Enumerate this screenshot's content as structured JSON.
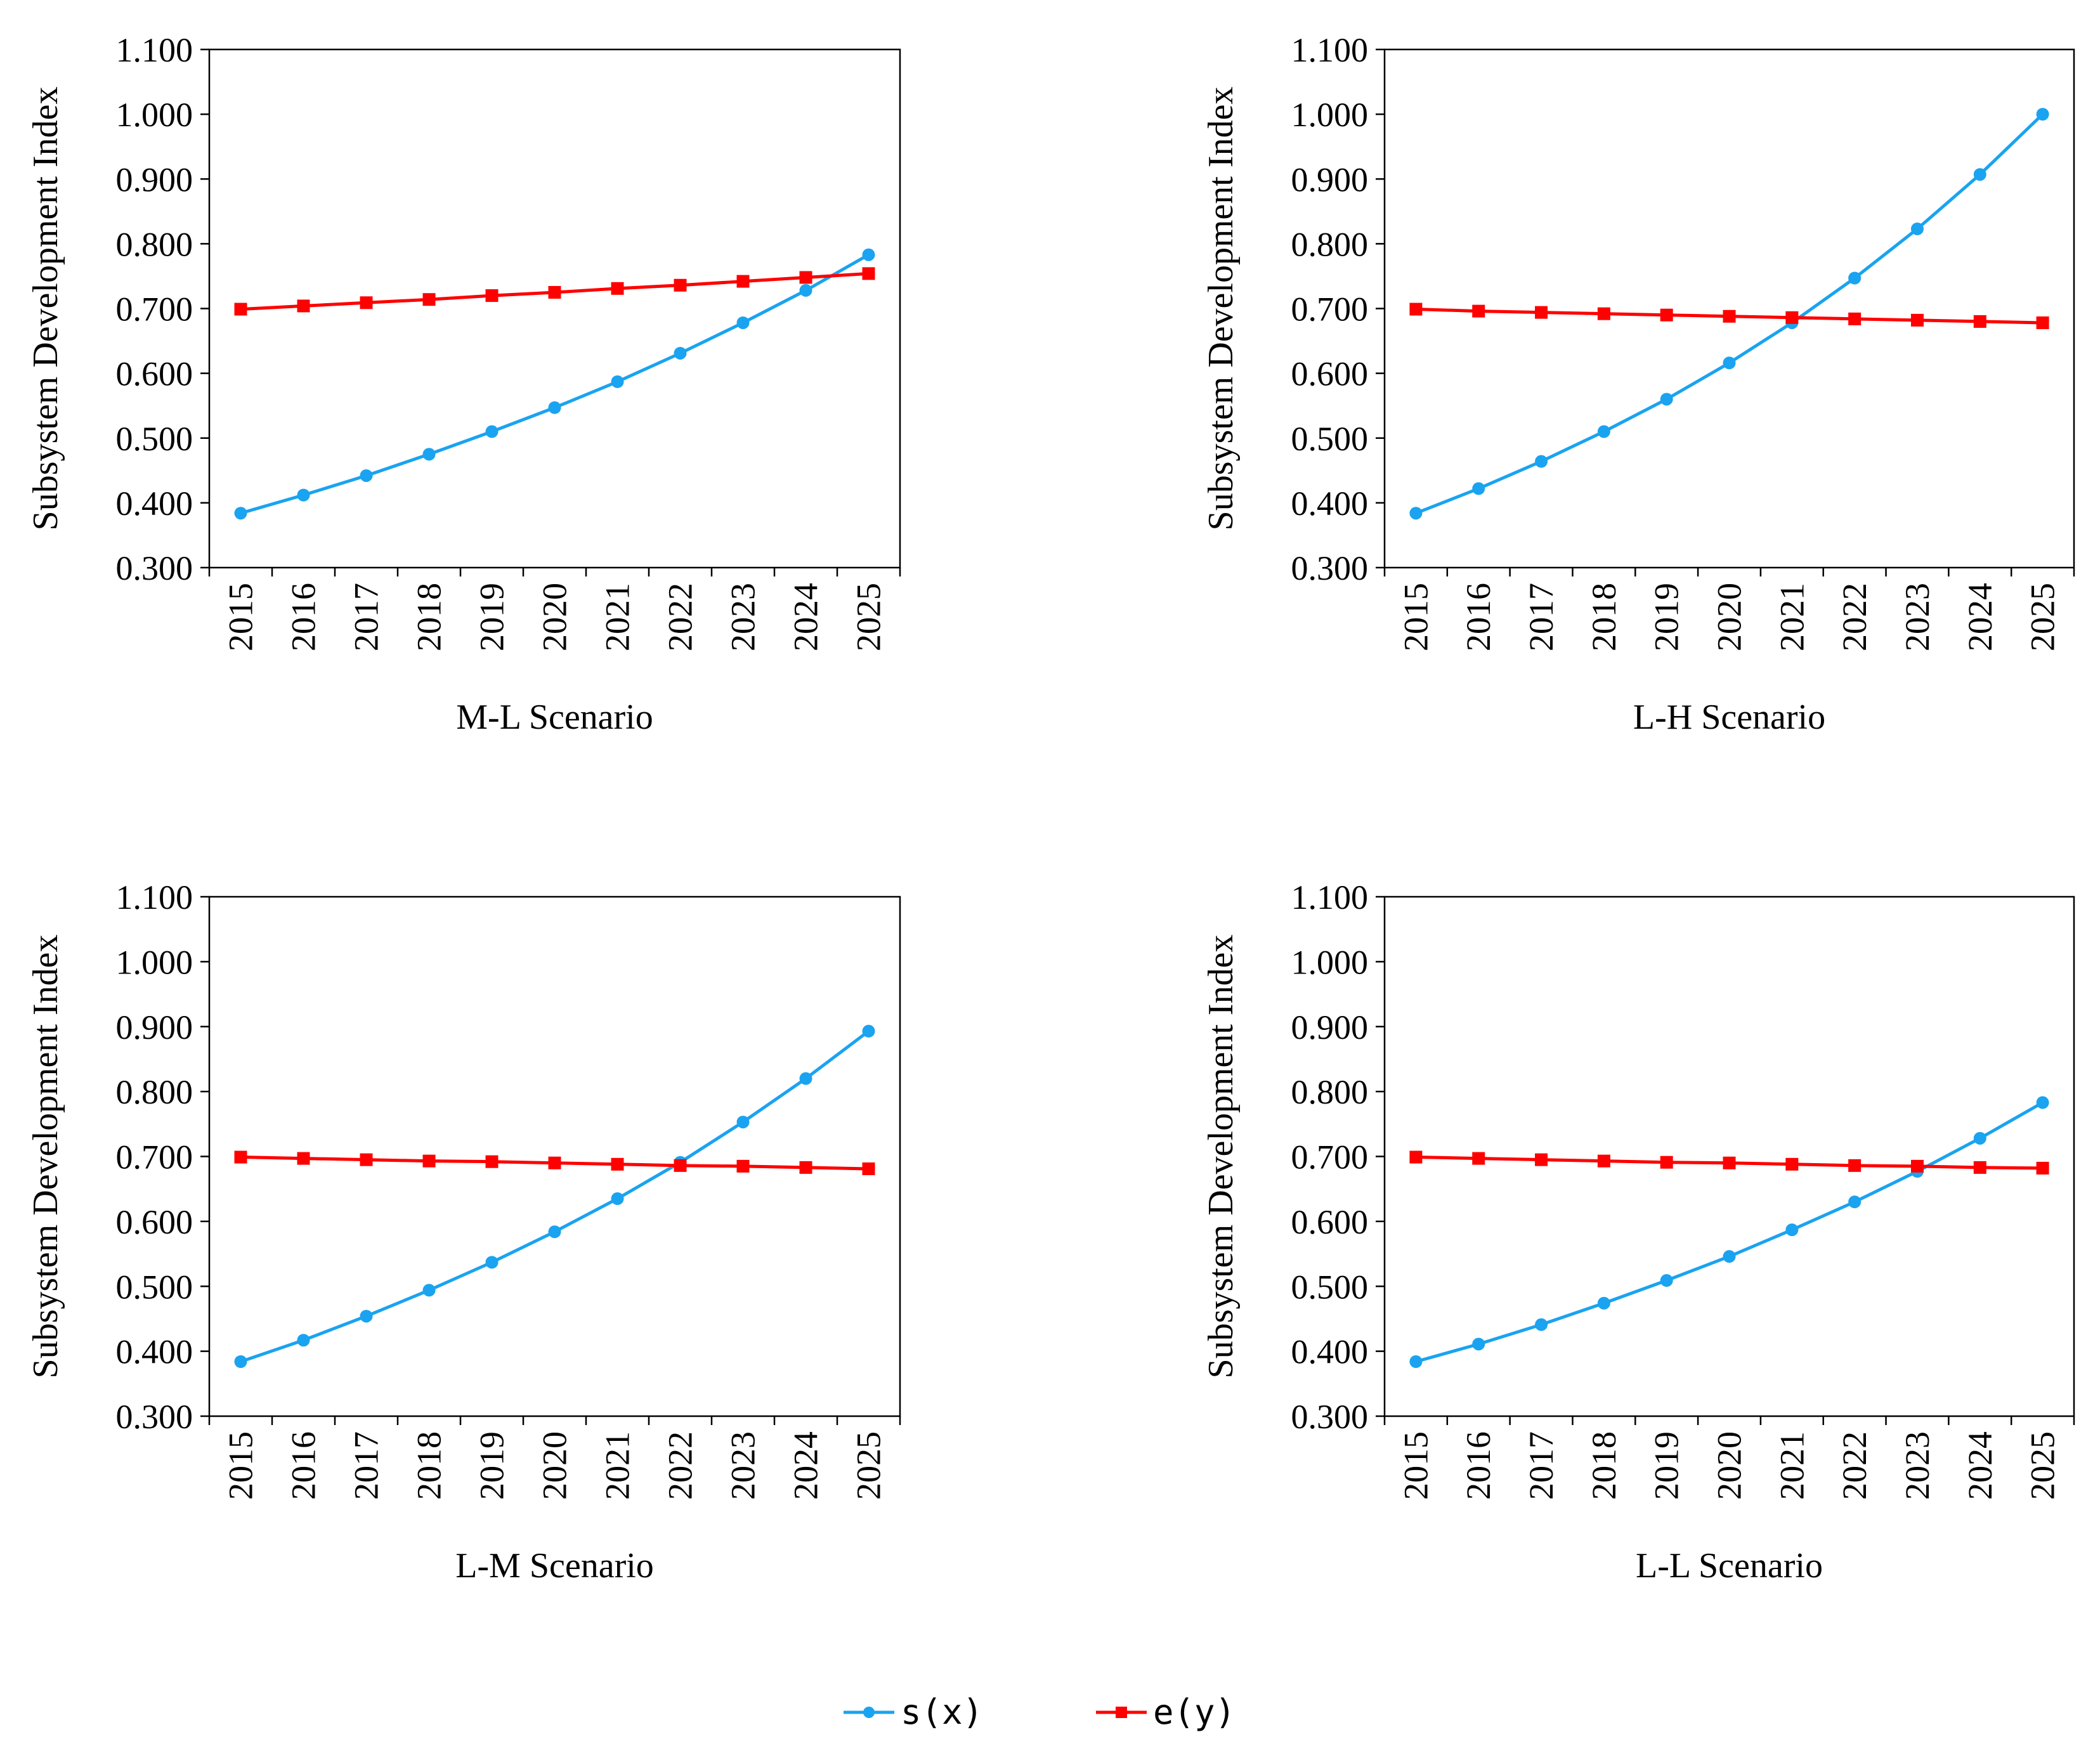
{
  "chart_data": [
    {
      "type": "line",
      "title": "M-L Scenario",
      "xlabel": "M-L Scenario",
      "ylabel": "Subsystem Development Index",
      "ylim": [
        0.3,
        1.1
      ],
      "yticks": [
        "0.300",
        "0.400",
        "0.500",
        "0.600",
        "0.700",
        "0.800",
        "0.900",
        "1.000",
        "1.100"
      ],
      "categories": [
        "2015",
        "2016",
        "2017",
        "2018",
        "2019",
        "2020",
        "2021",
        "2022",
        "2023",
        "2024",
        "2025"
      ],
      "series": [
        {
          "name": "s(x)",
          "values": [
            0.384,
            0.412,
            0.442,
            0.475,
            0.51,
            0.547,
            0.587,
            0.631,
            0.678,
            0.728,
            0.783
          ]
        },
        {
          "name": "e(y)",
          "values": [
            0.699,
            0.704,
            0.709,
            0.714,
            0.72,
            0.725,
            0.731,
            0.736,
            0.742,
            0.748,
            0.754
          ]
        }
      ]
    },
    {
      "type": "line",
      "title": "L-H Scenario",
      "xlabel": "L-H Scenario",
      "ylabel": "Subsystem Development Index",
      "ylim": [
        0.3,
        1.1
      ],
      "yticks": [
        "0.300",
        "0.400",
        "0.500",
        "0.600",
        "0.700",
        "0.800",
        "0.900",
        "1.000",
        "1.100"
      ],
      "categories": [
        "2015",
        "2016",
        "2017",
        "2018",
        "2019",
        "2020",
        "2021",
        "2022",
        "2023",
        "2024",
        "2025"
      ],
      "series": [
        {
          "name": "s(x)",
          "values": [
            0.384,
            0.422,
            0.464,
            0.51,
            0.56,
            0.616,
            0.678,
            0.747,
            0.823,
            0.907,
            1.0
          ]
        },
        {
          "name": "e(y)",
          "values": [
            0.699,
            0.696,
            0.694,
            0.692,
            0.69,
            0.688,
            0.686,
            0.684,
            0.682,
            0.68,
            0.678
          ]
        }
      ]
    },
    {
      "type": "line",
      "title": "L-M Scenario",
      "xlabel": "L-M Scenario",
      "ylabel": "Subsystem Development Index",
      "ylim": [
        0.3,
        1.1
      ],
      "yticks": [
        "0.300",
        "0.400",
        "0.500",
        "0.600",
        "0.700",
        "0.800",
        "0.900",
        "1.000",
        "1.100"
      ],
      "categories": [
        "2015",
        "2016",
        "2017",
        "2018",
        "2019",
        "2020",
        "2021",
        "2022",
        "2023",
        "2024",
        "2025"
      ],
      "series": [
        {
          "name": "s(x)",
          "values": [
            0.384,
            0.417,
            0.454,
            0.494,
            0.537,
            0.584,
            0.635,
            0.691,
            0.753,
            0.82,
            0.893
          ]
        },
        {
          "name": "e(y)",
          "values": [
            0.699,
            0.697,
            0.695,
            0.693,
            0.692,
            0.69,
            0.688,
            0.686,
            0.685,
            0.683,
            0.681
          ]
        }
      ]
    },
    {
      "type": "line",
      "title": "L-L Scenario",
      "xlabel": "L-L Scenario",
      "ylabel": "Subsystem Development Index",
      "ylim": [
        0.3,
        1.1
      ],
      "yticks": [
        "0.300",
        "0.400",
        "0.500",
        "0.600",
        "0.700",
        "0.800",
        "0.900",
        "1.000",
        "1.100"
      ],
      "categories": [
        "2015",
        "2016",
        "2017",
        "2018",
        "2019",
        "2020",
        "2021",
        "2022",
        "2023",
        "2024",
        "2025"
      ],
      "series": [
        {
          "name": "s(x)",
          "values": [
            0.384,
            0.411,
            0.441,
            0.474,
            0.509,
            0.546,
            0.587,
            0.63,
            0.677,
            0.728,
            0.783
          ]
        },
        {
          "name": "e(y)",
          "values": [
            0.699,
            0.697,
            0.695,
            0.693,
            0.691,
            0.69,
            0.688,
            0.686,
            0.685,
            0.683,
            0.682
          ]
        }
      ]
    }
  ],
  "legend": {
    "items": [
      {
        "label": "s(x)",
        "color": "#1aa3f0",
        "marker": "circle"
      },
      {
        "label": "e(y)",
        "color": "#ff0000",
        "marker": "square"
      }
    ]
  }
}
